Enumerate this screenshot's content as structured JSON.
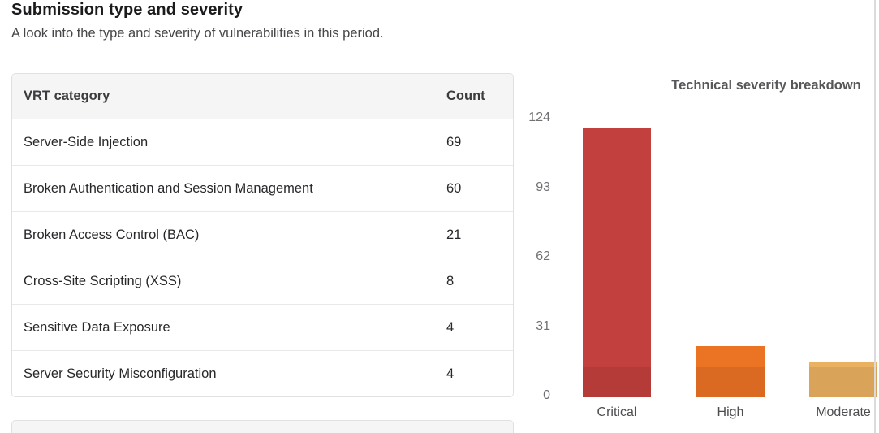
{
  "section": {
    "title": "Submission type and severity",
    "subtitle": "A look into the type and severity of vulnerabilities in this period."
  },
  "table": {
    "headers": {
      "category": "VRT category",
      "count": "Count"
    },
    "rows": [
      {
        "category": "Server-Side Injection",
        "count": "69"
      },
      {
        "category": "Broken Authentication and Session Management",
        "count": "60"
      },
      {
        "category": "Broken Access Control (BAC)",
        "count": "21"
      },
      {
        "category": "Cross-Site Scripting (XSS)",
        "count": "8"
      },
      {
        "category": "Sensitive Data Exposure",
        "count": "4"
      },
      {
        "category": "Server Security Misconfiguration",
        "count": "4"
      }
    ]
  },
  "chart_data": {
    "type": "bar",
    "title": "Technical severity breakdown",
    "categories": [
      "Critical",
      "High",
      "Moderate"
    ],
    "values": [
      120,
      23,
      16
    ],
    "xlabel": "",
    "ylabel": "",
    "ylim": [
      0,
      124
    ],
    "y_ticks": [
      0,
      31,
      62,
      93,
      124
    ],
    "grid": false,
    "legend": "none",
    "bar_colors": [
      "#c2403d",
      "#eb7324",
      "#eab160"
    ]
  }
}
